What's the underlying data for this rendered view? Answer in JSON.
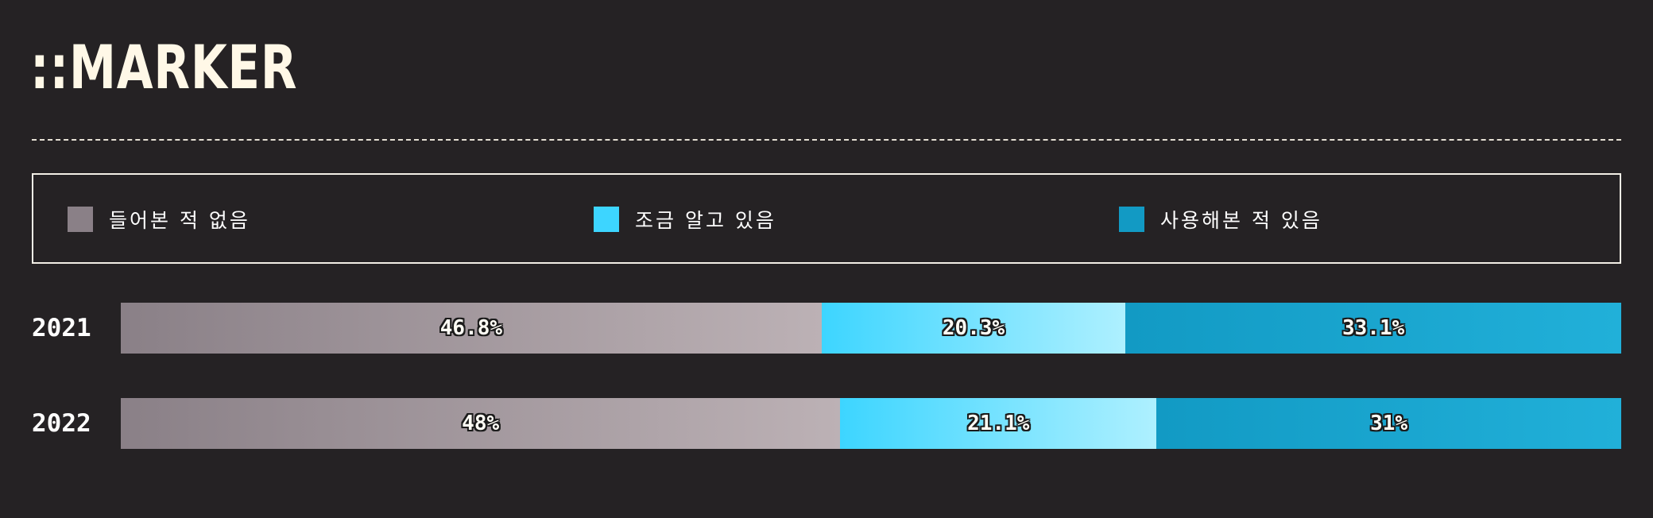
{
  "header": {
    "title": "::MARKER"
  },
  "chart_data": {
    "type": "bar",
    "orientation": "horizontal",
    "stacked": true,
    "normalized": true,
    "categories": [
      "2021",
      "2022"
    ],
    "series": [
      {
        "name": "들어본 적 없음",
        "values": [
          46.8,
          48
        ],
        "labels": [
          "46.8%",
          "48%"
        ],
        "color_from": "#8a8087",
        "color_to": "#bcb1b5"
      },
      {
        "name": "조금 알고 있음",
        "values": [
          20.3,
          21.1
        ],
        "labels": [
          "20.3%",
          "21.1%"
        ],
        "color_from": "#3dd5ff",
        "color_to": "#aef0ff"
      },
      {
        "name": "사용해본 적 있음",
        "values": [
          33.1,
          31
        ],
        "labels": [
          "33.1%",
          "31%"
        ],
        "color_from": "#129ac4",
        "color_to": "#21b0d9"
      }
    ],
    "legend_position": "top",
    "grid": false
  }
}
